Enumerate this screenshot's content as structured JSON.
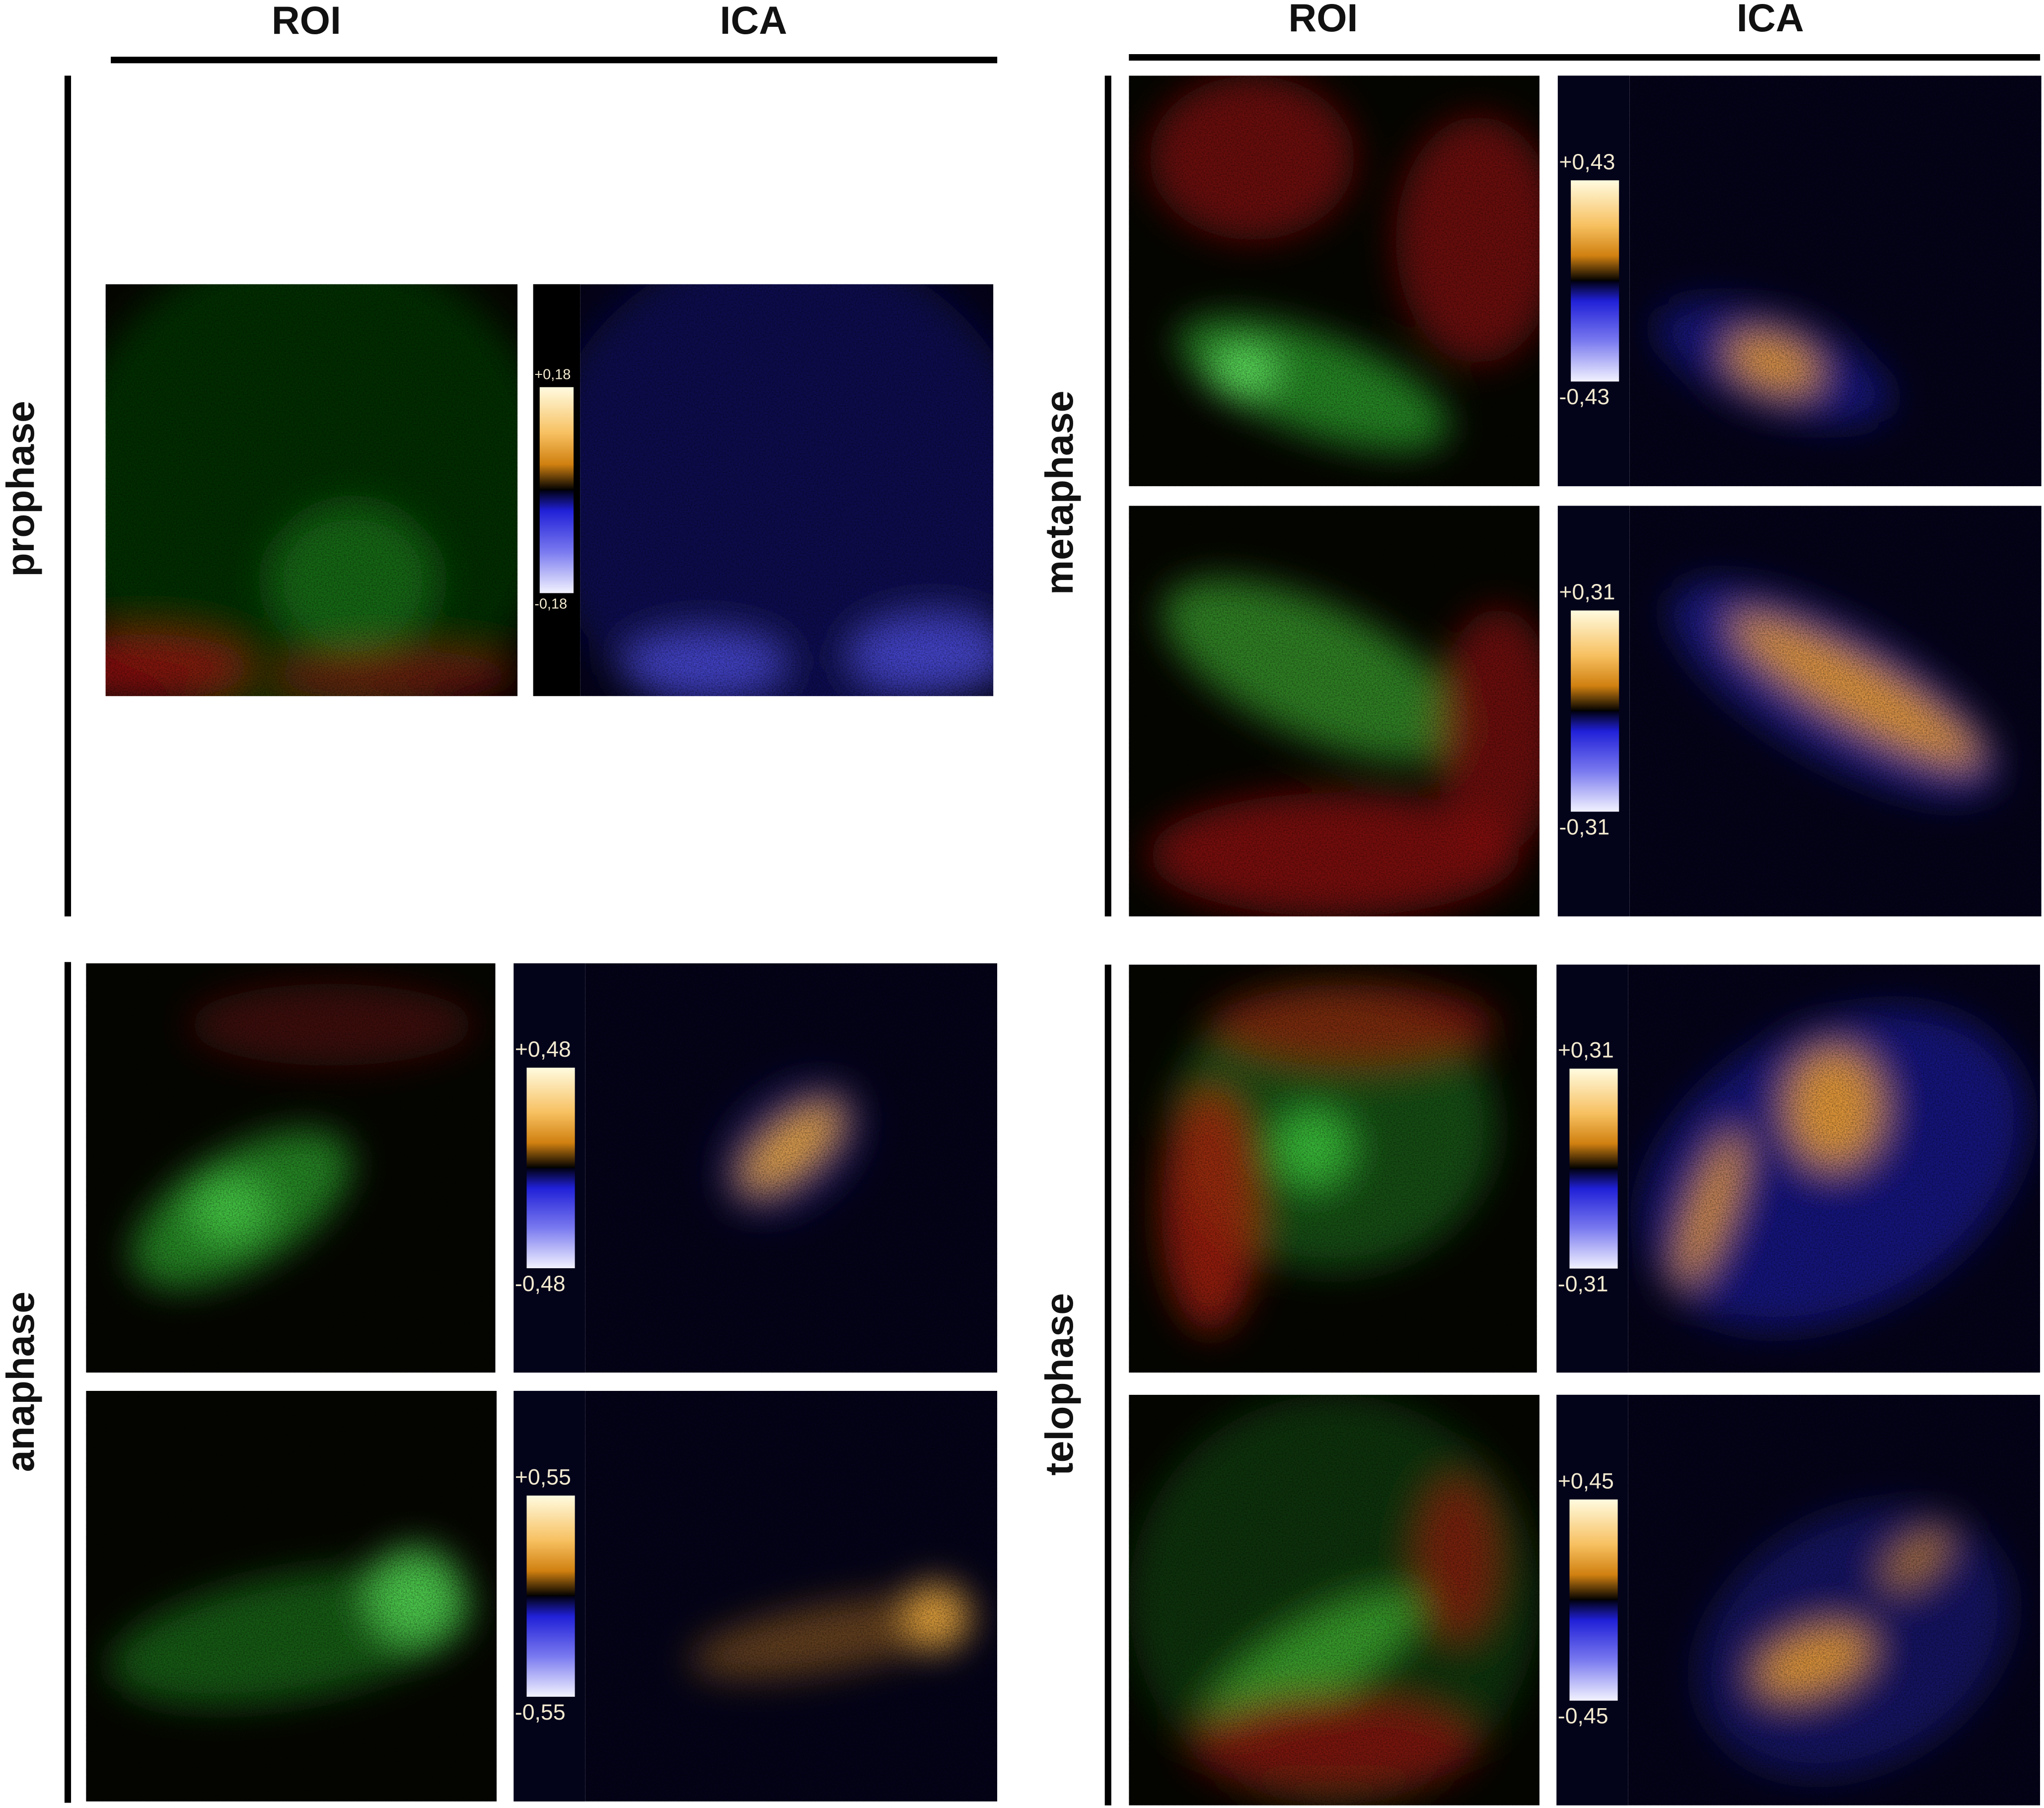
{
  "header": {
    "columns": [
      "ROI",
      "ICA",
      "ROI",
      "ICA"
    ]
  },
  "phases": [
    {
      "label": "prophase",
      "images": [
        {
          "scale_max": "+0,18",
          "scale_min": "-0,18"
        }
      ]
    },
    {
      "label": "metaphase",
      "images": [
        {
          "scale_max": "+0,43",
          "scale_min": "-0,43"
        },
        {
          "scale_max": "+0,31",
          "scale_min": "-0,31"
        }
      ]
    },
    {
      "label": "anaphase",
      "images": [
        {
          "scale_max": "+0,48",
          "scale_min": "-0,48"
        },
        {
          "scale_max": "+0,55",
          "scale_min": "-0,55"
        }
      ]
    },
    {
      "label": "telophase",
      "images": [
        {
          "scale_max": "+0,31",
          "scale_min": "-0,31"
        },
        {
          "scale_max": "+0,45",
          "scale_min": "-0,45"
        }
      ]
    }
  ]
}
